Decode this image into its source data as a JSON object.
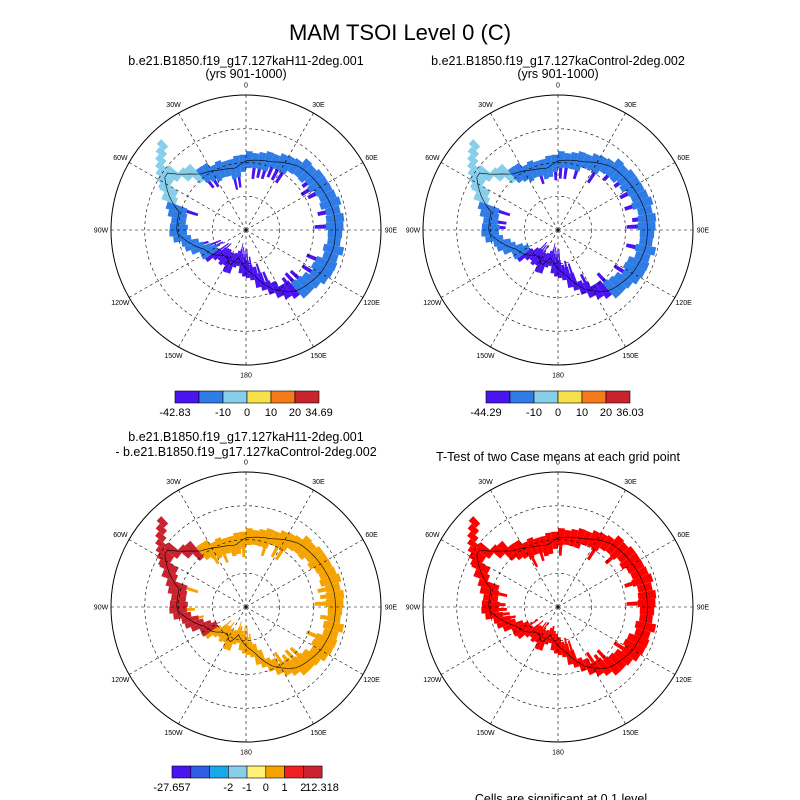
{
  "figure": {
    "title": "MAM TSOI Level 0 (C)",
    "footnote": "Cells are significant at 0.1 level"
  },
  "lon_labels": [
    "0",
    "30E",
    "60E",
    "90E",
    "120E",
    "150E",
    "180",
    "150W",
    "120W",
    "90W",
    "60W",
    "30W"
  ],
  "chart_data": [
    {
      "type": "polar-map",
      "panel": "case1",
      "title": [
        "b.e21.B1850.f19_g17.127kaH11-2deg.001",
        "(yrs 901-1000)"
      ],
      "colorbar": {
        "colors": [
          "#4a14f0",
          "#2f7ce6",
          "#87ceeb",
          "#f7e14a",
          "#f57a1c",
          "#c8232e"
        ],
        "labels": [
          "-42.83",
          "-10",
          "0",
          "10",
          "20",
          "34.69"
        ]
      },
      "zones": {
        "west": "#2f7ce6",
        "peninsula": "#87ceeb",
        "east": "#2f7ce6",
        "interior": "#4a14f0"
      }
    },
    {
      "type": "polar-map",
      "panel": "case2",
      "title": [
        "b.e21.B1850.f19_g17.127kaControl-2deg.002",
        "(yrs 901-1000)"
      ],
      "colorbar": {
        "colors": [
          "#4a14f0",
          "#2f7ce6",
          "#87ceeb",
          "#f7e14a",
          "#f57a1c",
          "#c8232e"
        ],
        "labels": [
          "-44.29",
          "-10",
          "0",
          "10",
          "20",
          "36.03"
        ]
      },
      "zones": {
        "west": "#2f7ce6",
        "peninsula": "#87ceeb",
        "east": "#2f7ce6",
        "interior": "#4a14f0"
      }
    },
    {
      "type": "polar-map",
      "panel": "difference",
      "title": [
        "b.e21.B1850.f19_g17.127kaH11-2deg.001",
        "- b.e21.B1850.f19_g17.127kaControl-2deg.002"
      ],
      "colorbar": {
        "colors": [
          "#4a14f0",
          "#2f5ee6",
          "#19a8e8",
          "#87ceeb",
          "#fff176",
          "#f5a300",
          "#f02020",
          "#c8232e"
        ],
        "labels": [
          "-27.657",
          "-2",
          "-1",
          "0",
          "1",
          "2",
          "12.318"
        ]
      },
      "zones": {
        "west": "#c8232e",
        "peninsula": "#c8232e",
        "east": "#f5a300",
        "interior": "#f5a300"
      }
    },
    {
      "type": "polar-map",
      "panel": "ttest",
      "title": [
        "T-Test of two Case means at each grid point"
      ],
      "zones": {
        "west": "#ff0000",
        "peninsula": "#ff0000",
        "east": "#ff0000",
        "interior": "#ff0000"
      }
    }
  ]
}
